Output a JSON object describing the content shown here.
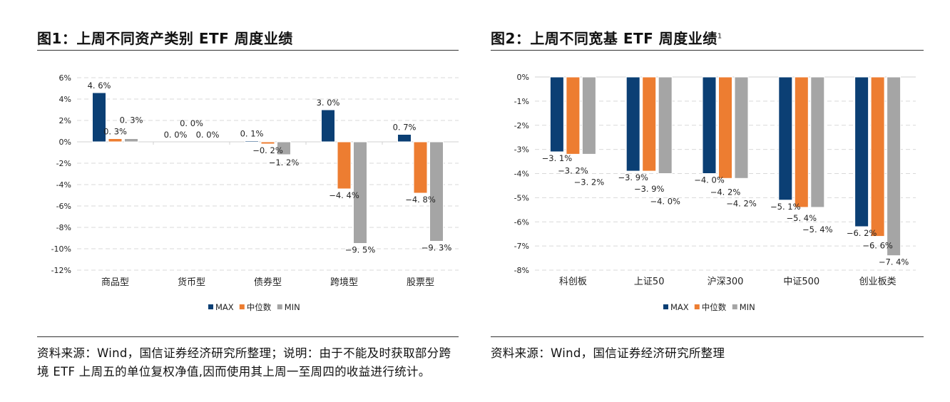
{
  "panels": [
    {
      "title": "图1：上周不同资产类别 ETF 周度业绩",
      "sup": "",
      "source": "资料来源：Wind，国信证券经济研究所整理；说明：由于不能及时获取部分跨境 ETF 上周五的单位复权净值,因而使用其上周一至周四的收益进行统计。"
    },
    {
      "title": "图2：上周不同宽基 ETF 周度业绩",
      "sup": "1",
      "source": "资料来源：Wind，国信证券经济研究所整理"
    }
  ],
  "chart_data": [
    {
      "type": "bar",
      "categories": [
        "商品型",
        "货币型",
        "债券型",
        "跨境型",
        "股票型"
      ],
      "series": [
        {
          "name": "MAX",
          "color": "#0B3F74",
          "values": [
            4.6,
            0.0,
            0.1,
            3.0,
            0.7
          ]
        },
        {
          "name": "中位数",
          "color": "#ED7D31",
          "values": [
            0.3,
            0.0,
            -0.2,
            -4.4,
            -4.8
          ]
        },
        {
          "name": "MIN",
          "color": "#A5A5A5",
          "values": [
            0.3,
            0.0,
            -1.2,
            -9.5,
            -9.3
          ]
        }
      ],
      "ylim": [
        -12,
        6
      ],
      "yticks": [
        "6%",
        "4%",
        "2%",
        "0%",
        "-2%",
        "-4%",
        "-6%",
        "-8%",
        "-10%",
        "-12%"
      ],
      "grid": true,
      "legend": "bottom",
      "value_labels": [
        "4.6%",
        "0.0%",
        "0.1%",
        "3.0%",
        "0.7%",
        "0.3%",
        "0.0%",
        "-0.2%",
        "-4.4%",
        "-4.8%",
        "0.3%",
        "0.0%",
        "-1.2%",
        "-9.5%",
        "-9.3%"
      ]
    },
    {
      "type": "bar",
      "categories": [
        "科创板",
        "上证50",
        "沪深300",
        "中证500",
        "创业板类"
      ],
      "series": [
        {
          "name": "MAX",
          "color": "#0B3F74",
          "values": [
            -3.1,
            -3.9,
            -4.0,
            -5.1,
            -6.2
          ]
        },
        {
          "name": "中位数",
          "color": "#ED7D31",
          "values": [
            -3.2,
            -3.9,
            -4.2,
            -5.4,
            -6.6
          ]
        },
        {
          "name": "MIN",
          "color": "#A5A5A5",
          "values": [
            -3.2,
            -4.0,
            -4.2,
            -5.4,
            -7.4
          ]
        }
      ],
      "ylim": [
        -8,
        0
      ],
      "yticks": [
        "0%",
        "-1%",
        "-2%",
        "-3%",
        "-4%",
        "-5%",
        "-6%",
        "-7%",
        "-8%"
      ],
      "grid": true,
      "legend": "bottom"
    }
  ]
}
